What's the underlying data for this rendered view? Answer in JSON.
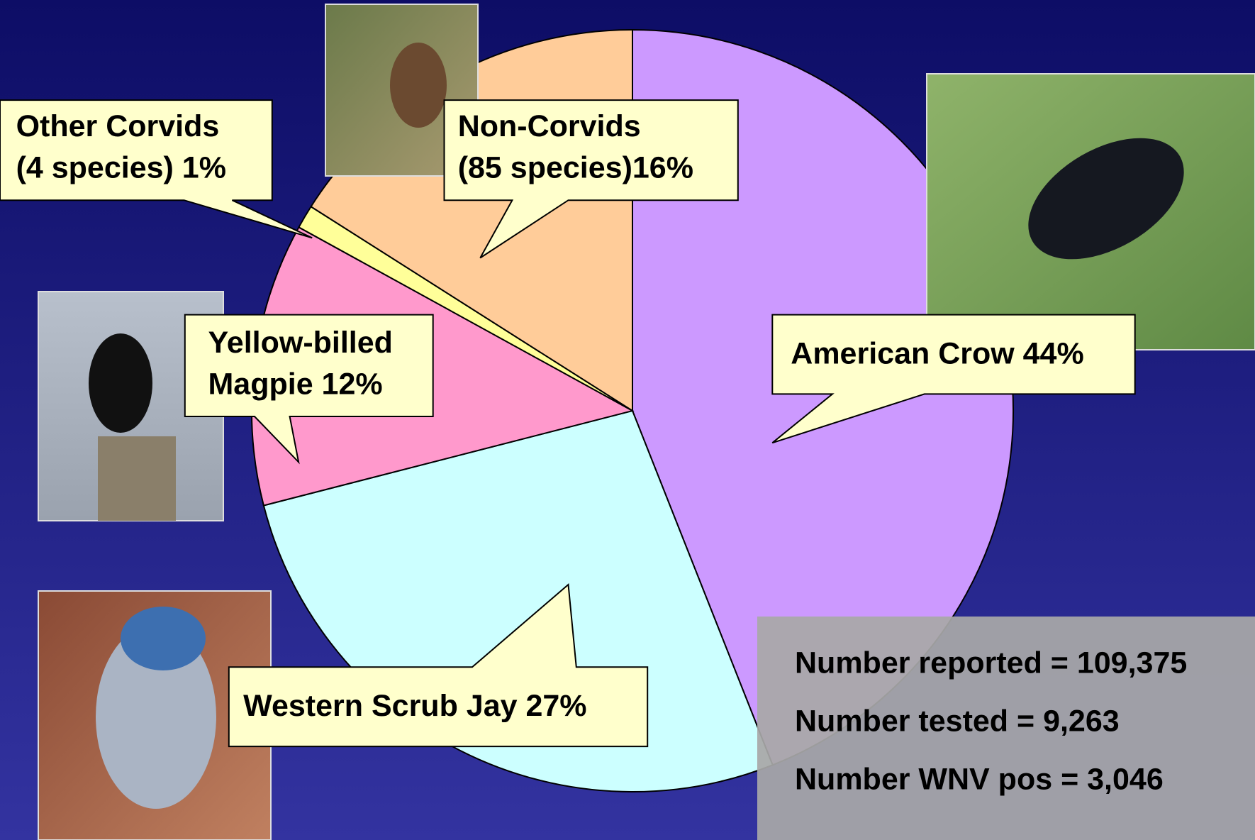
{
  "chart_data": {
    "type": "pie",
    "values": [
      44,
      27,
      12,
      1,
      16
    ],
    "value_labels": [
      [
        "American Crow 44%"
      ],
      [
        "Western Scrub Jay 27%"
      ],
      [
        "Yellow-billed",
        "Magpie 12%"
      ],
      [
        "Other Corvids",
        "(4 species) 1%"
      ],
      [
        "Non-Corvids",
        "(85 species)16%"
      ]
    ],
    "colors": [
      "#cc99ff",
      "#ccffff",
      "#ff99cc",
      "#ffff99",
      "#ffcc99"
    ],
    "annotations": [
      "Number reported = 109,375",
      "Number tested = 9,263",
      "Number WNV pos = 3,046"
    ]
  }
}
